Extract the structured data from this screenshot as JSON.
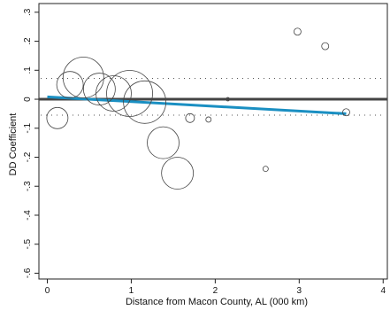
{
  "chart_data": {
    "type": "scatter",
    "xlabel": "Distance from Macon County, AL (000 km)",
    "ylabel": "DD Coefficient",
    "xlim": [
      -0.1,
      4.05
    ],
    "ylim": [
      -0.62,
      0.33
    ],
    "x_ticks": [
      {
        "value": 0,
        "label": "0"
      },
      {
        "value": 1,
        "label": "1"
      },
      {
        "value": 2,
        "label": "2"
      },
      {
        "value": 3,
        "label": "3"
      },
      {
        "value": 4,
        "label": "4"
      }
    ],
    "y_ticks": [
      {
        "value": 0.3,
        "label": ".3"
      },
      {
        "value": 0.2,
        "label": ".2"
      },
      {
        "value": 0.1,
        "label": ".1"
      },
      {
        "value": 0,
        "label": "0"
      },
      {
        "value": -0.1,
        "label": "-.1"
      },
      {
        "value": -0.2,
        "label": "-.2"
      },
      {
        "value": -0.3,
        "label": "-.3"
      },
      {
        "value": -0.4,
        "label": "-.4"
      },
      {
        "value": -0.5,
        "label": "-.5"
      },
      {
        "value": -0.6,
        "label": "-.6"
      }
    ],
    "points": [
      {
        "x": 0.12,
        "y": -0.065,
        "weight": 12
      },
      {
        "x": 0.27,
        "y": 0.05,
        "weight": 15
      },
      {
        "x": 0.43,
        "y": 0.075,
        "weight": 23
      },
      {
        "x": 0.62,
        "y": 0.035,
        "weight": 18
      },
      {
        "x": 0.79,
        "y": 0.02,
        "weight": 20
      },
      {
        "x": 0.98,
        "y": 0.02,
        "weight": 26
      },
      {
        "x": 1.16,
        "y": -0.01,
        "weight": 24
      },
      {
        "x": 1.38,
        "y": -0.15,
        "weight": 18
      },
      {
        "x": 1.55,
        "y": -0.255,
        "weight": 18
      },
      {
        "x": 1.7,
        "y": -0.065,
        "weight": 5
      },
      {
        "x": 1.92,
        "y": -0.07,
        "weight": 3
      },
      {
        "x": 2.15,
        "y": 0.0,
        "weight": 2
      },
      {
        "x": 2.6,
        "y": -0.24,
        "weight": 3
      },
      {
        "x": 2.98,
        "y": 0.233,
        "weight": 4
      },
      {
        "x": 3.31,
        "y": 0.183,
        "weight": 4
      },
      {
        "x": 3.56,
        "y": -0.045,
        "weight": 4
      }
    ],
    "fit_line": {
      "x": [
        0.0,
        3.56
      ],
      "y": [
        0.008,
        -0.05
      ],
      "color": "#1a8fc2"
    },
    "zero_line": {
      "y": 0,
      "color": "#444444"
    },
    "dotted_bands": [
      0.072,
      -0.055
    ],
    "marker_color": "#444444",
    "grid": false
  }
}
